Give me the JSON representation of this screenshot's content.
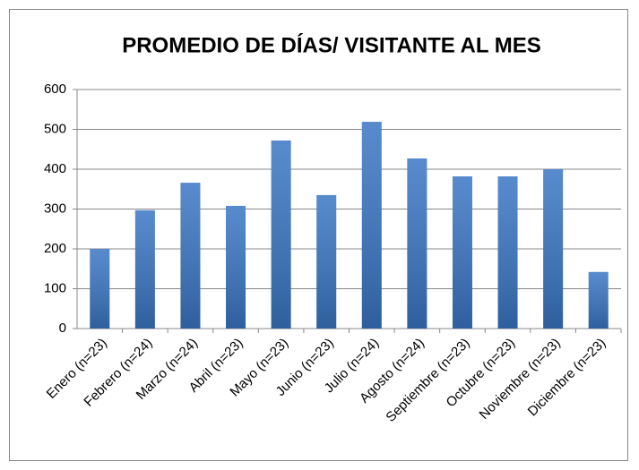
{
  "chart_data": {
    "type": "bar",
    "title": "PROMEDIO DE DÍAS/ VISITANTE AL MES",
    "categories": [
      "Enero (n=23)",
      "Febrero (n=24)",
      "Marzo (n=24)",
      "Abril (n=23)",
      "Mayo (n=23)",
      "Junio (n=23)",
      "Julio (n=24)",
      "Agosto (n=24)",
      "Septiembre (n=23)",
      "Octubre (n=23)",
      "Noviembre (n=23)",
      "Diciembre (n=23)"
    ],
    "values": [
      200,
      297,
      366,
      308,
      472,
      335,
      519,
      427,
      382,
      382,
      400,
      142
    ],
    "color": "#3a76c4",
    "ylim": [
      0,
      600
    ],
    "yticks": [
      0,
      100,
      200,
      300,
      400,
      500,
      600
    ],
    "grid": true
  }
}
